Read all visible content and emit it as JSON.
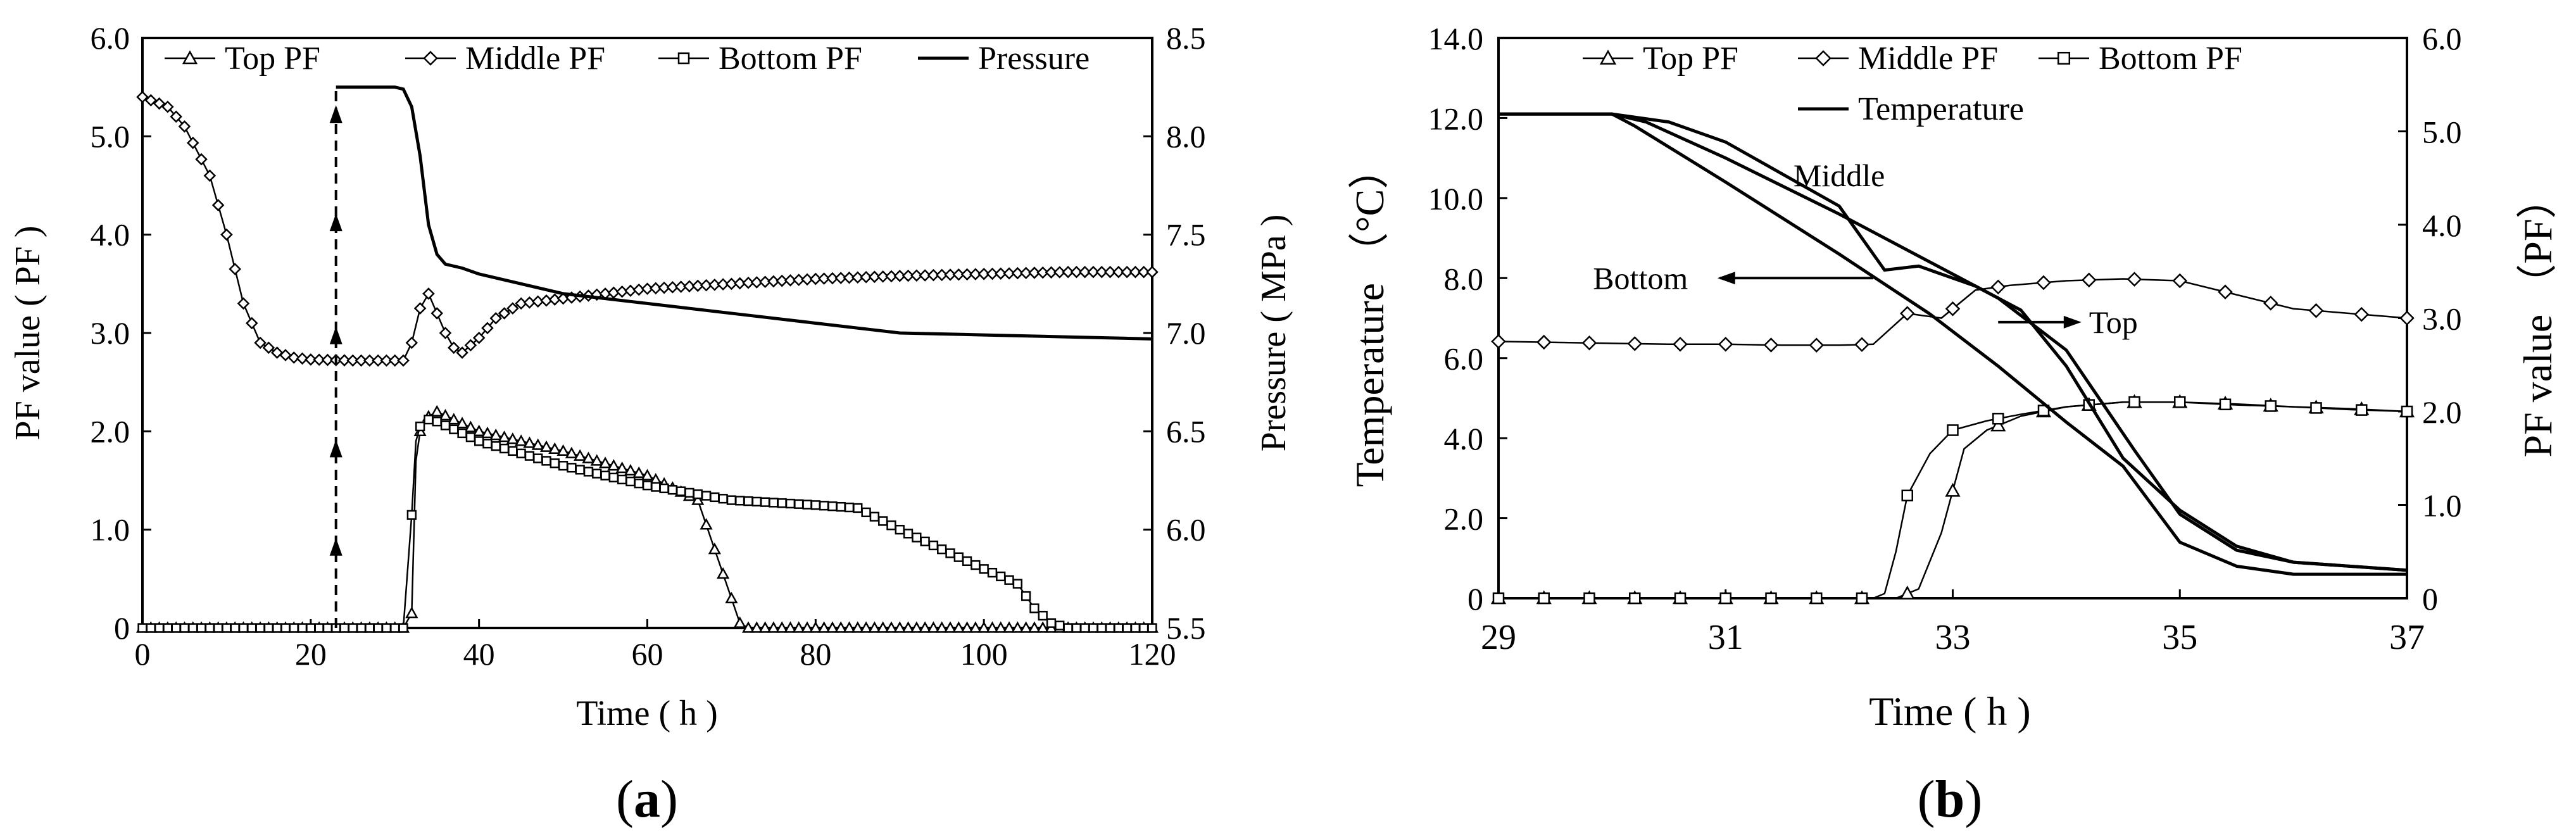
{
  "chart_data": [
    {
      "panel": "a",
      "type": "line",
      "xlabel": "Time ( h )",
      "ylabel": "PF value ( PF )",
      "y2label": "Pressure ( MPa )",
      "xlim": [
        0,
        120
      ],
      "ylim": [
        0,
        6
      ],
      "y2lim": [
        5.5,
        8.5
      ],
      "xticks": [
        "0",
        "20",
        "40",
        "60",
        "80",
        "100",
        "120"
      ],
      "yticks": [
        "0",
        "1.0",
        "2.0",
        "3.0",
        "4.0",
        "5.0",
        "6.0"
      ],
      "y2ticks": [
        "5.5",
        "6.0",
        "6.5",
        "7.0",
        "7.5",
        "8.0",
        "8.5"
      ],
      "legend": [
        "Top  PF",
        "Middle  PF",
        "Bottom PF",
        "Pressure"
      ],
      "marker_arrow_x": 23,
      "series": [
        {
          "name": "Top  PF",
          "marker": "triangle",
          "x": [
            0,
            10,
            20,
            31,
            32,
            32.5,
            33,
            34,
            35,
            40,
            50,
            60,
            66,
            68,
            70,
            71,
            72,
            80,
            90,
            100,
            110,
            120
          ],
          "y": [
            0,
            0,
            0,
            0,
            0.15,
            1.7,
            2.0,
            2.15,
            2.2,
            2.0,
            1.8,
            1.55,
            1.3,
            0.8,
            0.3,
            0.05,
            0,
            0,
            0,
            0,
            0,
            0
          ]
        },
        {
          "name": "Middle  PF",
          "marker": "diamond",
          "x": [
            0,
            3,
            5,
            8,
            10,
            12,
            14,
            16,
            18,
            20,
            25,
            31,
            32,
            33,
            34,
            35,
            36,
            37,
            38,
            40,
            42,
            45,
            50,
            60,
            70,
            80,
            90,
            100,
            110,
            120
          ],
          "y": [
            5.4,
            5.3,
            5.1,
            4.6,
            4.0,
            3.3,
            2.9,
            2.8,
            2.75,
            2.73,
            2.72,
            2.72,
            2.9,
            3.25,
            3.4,
            3.2,
            3.0,
            2.85,
            2.8,
            2.95,
            3.15,
            3.3,
            3.35,
            3.45,
            3.5,
            3.55,
            3.58,
            3.6,
            3.62,
            3.62
          ]
        },
        {
          "name": "Bottom PF",
          "marker": "square",
          "x": [
            0,
            10,
            20,
            31,
            32,
            32.5,
            33,
            34,
            35,
            40,
            50,
            60,
            70,
            80,
            85,
            90,
            95,
            100,
            104,
            106,
            108,
            110,
            112,
            120
          ],
          "y": [
            0,
            0,
            0,
            0,
            1.15,
            1.9,
            2.05,
            2.12,
            2.1,
            1.9,
            1.65,
            1.45,
            1.3,
            1.25,
            1.22,
            1.0,
            0.8,
            0.6,
            0.45,
            0.2,
            0.05,
            0,
            0,
            0
          ]
        },
        {
          "name": "Pressure",
          "marker": "none",
          "x": [
            23,
            30,
            31,
            32,
            33,
            34,
            35,
            36,
            38,
            40,
            50,
            60,
            70,
            80,
            90,
            100,
            110,
            120
          ],
          "y": [
            8.25,
            8.25,
            8.24,
            8.15,
            7.9,
            7.55,
            7.4,
            7.35,
            7.33,
            7.3,
            7.2,
            7.15,
            7.1,
            7.05,
            7.0,
            6.99,
            6.98,
            6.97
          ]
        }
      ]
    },
    {
      "panel": "b",
      "type": "line",
      "xlabel": "Time ( h )",
      "ylabel": "Temperature （°C）",
      "y2label": "PF value （PF）",
      "xlim": [
        29,
        37
      ],
      "ylim": [
        0,
        14
      ],
      "y2lim": [
        0,
        6
      ],
      "xticks": [
        "29",
        "31",
        "33",
        "35",
        "37"
      ],
      "yticks": [
        "0",
        "2.0",
        "4.0",
        "6.0",
        "8.0",
        "10.0",
        "12.0",
        "14.0"
      ],
      "y2ticks": [
        "0",
        "1.0",
        "2.0",
        "3.0",
        "4.0",
        "5.0",
        "6.0"
      ],
      "legend": [
        "Top PF",
        "Middle  PF",
        "Bottom PF",
        "Temperature"
      ],
      "annotations": [
        "Middle",
        "Bottom",
        "Top"
      ],
      "series": [
        {
          "name": "Top PF",
          "marker": "triangle",
          "axis": "right",
          "x": [
            29,
            30,
            31,
            32,
            32.5,
            32.7,
            32.9,
            33.1,
            33.3,
            33.6,
            34,
            34.5,
            35,
            35.5,
            36,
            36.5,
            37
          ],
          "y": [
            0,
            0,
            0,
            0,
            0,
            0.1,
            0.7,
            1.6,
            1.8,
            1.95,
            2.05,
            2.1,
            2.1,
            2.08,
            2.05,
            2.03,
            2.0
          ]
        },
        {
          "name": "Middle  PF",
          "marker": "diamond",
          "axis": "right",
          "x": [
            29,
            29.5,
            30,
            30.5,
            31,
            31.5,
            32,
            32.3,
            32.6,
            32.9,
            33.2,
            33.5,
            34,
            34.5,
            35,
            35.5,
            36,
            36.5,
            37
          ],
          "y": [
            2.75,
            2.74,
            2.73,
            2.72,
            2.72,
            2.71,
            2.71,
            2.72,
            3.05,
            3.0,
            3.3,
            3.35,
            3.4,
            3.42,
            3.4,
            3.25,
            3.1,
            3.05,
            3.0
          ]
        },
        {
          "name": "Bottom PF",
          "marker": "square",
          "axis": "right",
          "x": [
            29,
            30,
            31,
            32,
            32.3,
            32.4,
            32.5,
            32.6,
            32.8,
            33,
            33.3,
            33.6,
            34,
            34.5,
            35,
            35.5,
            36,
            36.5,
            37
          ],
          "y": [
            0,
            0,
            0,
            0,
            0,
            0.05,
            0.5,
            1.1,
            1.55,
            1.8,
            1.9,
            1.97,
            2.05,
            2.1,
            2.1,
            2.07,
            2.05,
            2.02,
            2.0
          ]
        },
        {
          "name": "Temperature Top",
          "marker": "none",
          "axis": "left",
          "x": [
            29,
            30,
            30.3,
            31,
            32,
            32.8,
            33.4,
            34,
            34.6,
            35,
            35.5,
            36,
            37
          ],
          "y": [
            12.1,
            12.1,
            11.9,
            11.0,
            9.6,
            8.4,
            7.5,
            6.2,
            3.7,
            2.1,
            1.2,
            0.9,
            0.7
          ]
        },
        {
          "name": "Temperature Middle",
          "marker": "none",
          "axis": "left",
          "x": [
            29,
            30,
            30.5,
            31,
            32,
            32.4,
            32.7,
            33.2,
            33.6,
            34,
            34.5,
            35,
            35.5,
            36,
            37
          ],
          "y": [
            12.1,
            12.1,
            11.9,
            11.4,
            9.8,
            8.2,
            8.3,
            7.8,
            7.2,
            5.8,
            3.5,
            2.2,
            1.3,
            0.9,
            0.7
          ]
        },
        {
          "name": "Temperature Bottom",
          "marker": "none",
          "axis": "left",
          "x": [
            29,
            30,
            30.2,
            31,
            32,
            32.8,
            33.4,
            34,
            34.5,
            35,
            35.5,
            36,
            37
          ],
          "y": [
            12.1,
            12.1,
            11.8,
            10.4,
            8.6,
            7.1,
            5.8,
            4.4,
            3.3,
            1.4,
            0.8,
            0.6,
            0.6
          ]
        }
      ]
    }
  ],
  "panel_labels": {
    "a": {
      "open": "(",
      "letter": "a",
      "close": ")"
    },
    "b": {
      "open": "(",
      "letter": "b",
      "close": ")"
    }
  }
}
